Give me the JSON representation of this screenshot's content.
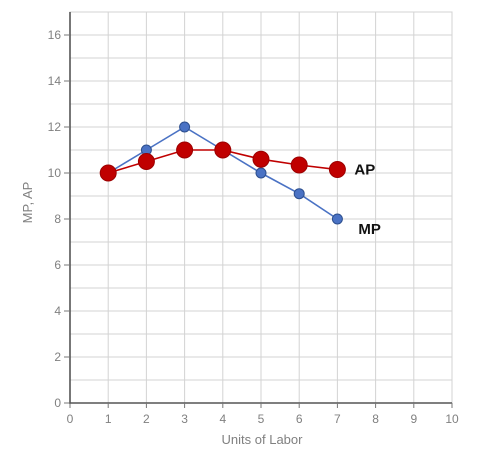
{
  "chart_data": {
    "type": "line",
    "title": "",
    "xlabel": "Units of Labor",
    "ylabel": "MP, AP",
    "xlim": [
      0,
      10
    ],
    "ylim": [
      0,
      17
    ],
    "x_ticks": [
      "0",
      "1",
      "2",
      "3",
      "4",
      "5",
      "6",
      "7",
      "8",
      "9",
      "10"
    ],
    "y_ticks": [
      "0",
      "2",
      "4",
      "6",
      "8",
      "10",
      "12",
      "14",
      "16"
    ],
    "grid": true,
    "legend": "none",
    "series": [
      {
        "name": "MP",
        "color": "#4a72c4",
        "line_color": "#4a72c4",
        "x": [
          1,
          2,
          3,
          4,
          5,
          6,
          7
        ],
        "y": [
          10,
          11,
          12,
          11,
          10,
          9.1,
          8
        ]
      },
      {
        "name": "AP",
        "color": "#c00000",
        "line_color": "#c00000",
        "x": [
          1,
          2,
          3,
          4,
          5,
          6,
          7
        ],
        "y": [
          10,
          10.5,
          11,
          11,
          10.6,
          10.35,
          10.15
        ]
      }
    ]
  }
}
